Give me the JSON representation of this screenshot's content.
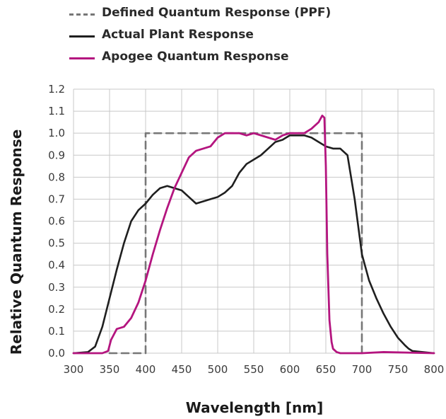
{
  "legend": {
    "defined": "Defined Quantum Response (PPF)",
    "actual": "Actual Plant Response",
    "apogee": "Apogee Quantum Response"
  },
  "colors": {
    "defined": "#777777",
    "actual": "#1f1f1f",
    "apogee": "#b4157f",
    "grid": "#c8c8c8"
  },
  "chart_data": {
    "type": "line",
    "xlabel": "Wavelength [nm]",
    "ylabel": "Relative Quantum Response",
    "xlim": [
      300,
      800
    ],
    "ylim": [
      0,
      1.2
    ],
    "xticks": [
      "300",
      "350",
      "400",
      "450",
      "500",
      "550",
      "600",
      "650",
      "700",
      "750",
      "800"
    ],
    "yticks": [
      "0.0",
      "0.1",
      "0.2",
      "0.3",
      "0.4",
      "0.5",
      "0.6",
      "0.7",
      "0.8",
      "0.9",
      "1.0",
      "1.1",
      "1.2"
    ],
    "grid": true,
    "legend_position": "top-left",
    "series": [
      {
        "name": "Defined Quantum Response (PPF)",
        "style": "dashed",
        "x": [
          350,
          400,
          400,
          700,
          700
        ],
        "y": [
          0.0,
          0.0,
          1.0,
          1.0,
          0.0
        ]
      },
      {
        "name": "Actual Plant Response",
        "style": "solid",
        "x": [
          300,
          320,
          330,
          340,
          350,
          360,
          370,
          380,
          390,
          400,
          410,
          420,
          430,
          440,
          450,
          460,
          470,
          480,
          490,
          500,
          510,
          520,
          530,
          540,
          550,
          560,
          570,
          580,
          590,
          600,
          610,
          620,
          630,
          640,
          650,
          660,
          670,
          680,
          690,
          700,
          710,
          720,
          730,
          740,
          750,
          760,
          765,
          770,
          800
        ],
        "y": [
          0.0,
          0.005,
          0.03,
          0.12,
          0.25,
          0.38,
          0.5,
          0.6,
          0.65,
          0.68,
          0.72,
          0.75,
          0.76,
          0.75,
          0.74,
          0.71,
          0.68,
          0.69,
          0.7,
          0.71,
          0.73,
          0.76,
          0.82,
          0.86,
          0.88,
          0.9,
          0.93,
          0.96,
          0.97,
          0.99,
          0.99,
          0.99,
          0.98,
          0.96,
          0.94,
          0.93,
          0.93,
          0.9,
          0.7,
          0.45,
          0.33,
          0.25,
          0.18,
          0.12,
          0.07,
          0.035,
          0.02,
          0.01,
          0.0
        ]
      },
      {
        "name": "Apogee Quantum Response",
        "style": "solid",
        "x": [
          300,
          340,
          348,
          352,
          360,
          370,
          380,
          390,
          400,
          410,
          420,
          430,
          440,
          450,
          460,
          470,
          480,
          490,
          500,
          510,
          520,
          530,
          540,
          550,
          560,
          570,
          580,
          590,
          600,
          610,
          620,
          630,
          640,
          645,
          648,
          650,
          652,
          655,
          658,
          660,
          665,
          670,
          700,
          730,
          800
        ],
        "y": [
          0.0,
          0.0,
          0.01,
          0.06,
          0.11,
          0.12,
          0.16,
          0.23,
          0.33,
          0.45,
          0.56,
          0.66,
          0.75,
          0.82,
          0.89,
          0.92,
          0.93,
          0.94,
          0.98,
          1.0,
          1.0,
          1.0,
          0.99,
          1.0,
          0.99,
          0.98,
          0.97,
          0.99,
          1.0,
          1.0,
          1.0,
          1.02,
          1.05,
          1.08,
          1.07,
          0.85,
          0.45,
          0.15,
          0.05,
          0.02,
          0.005,
          0.0,
          0.0,
          0.005,
          0.0
        ]
      }
    ]
  }
}
